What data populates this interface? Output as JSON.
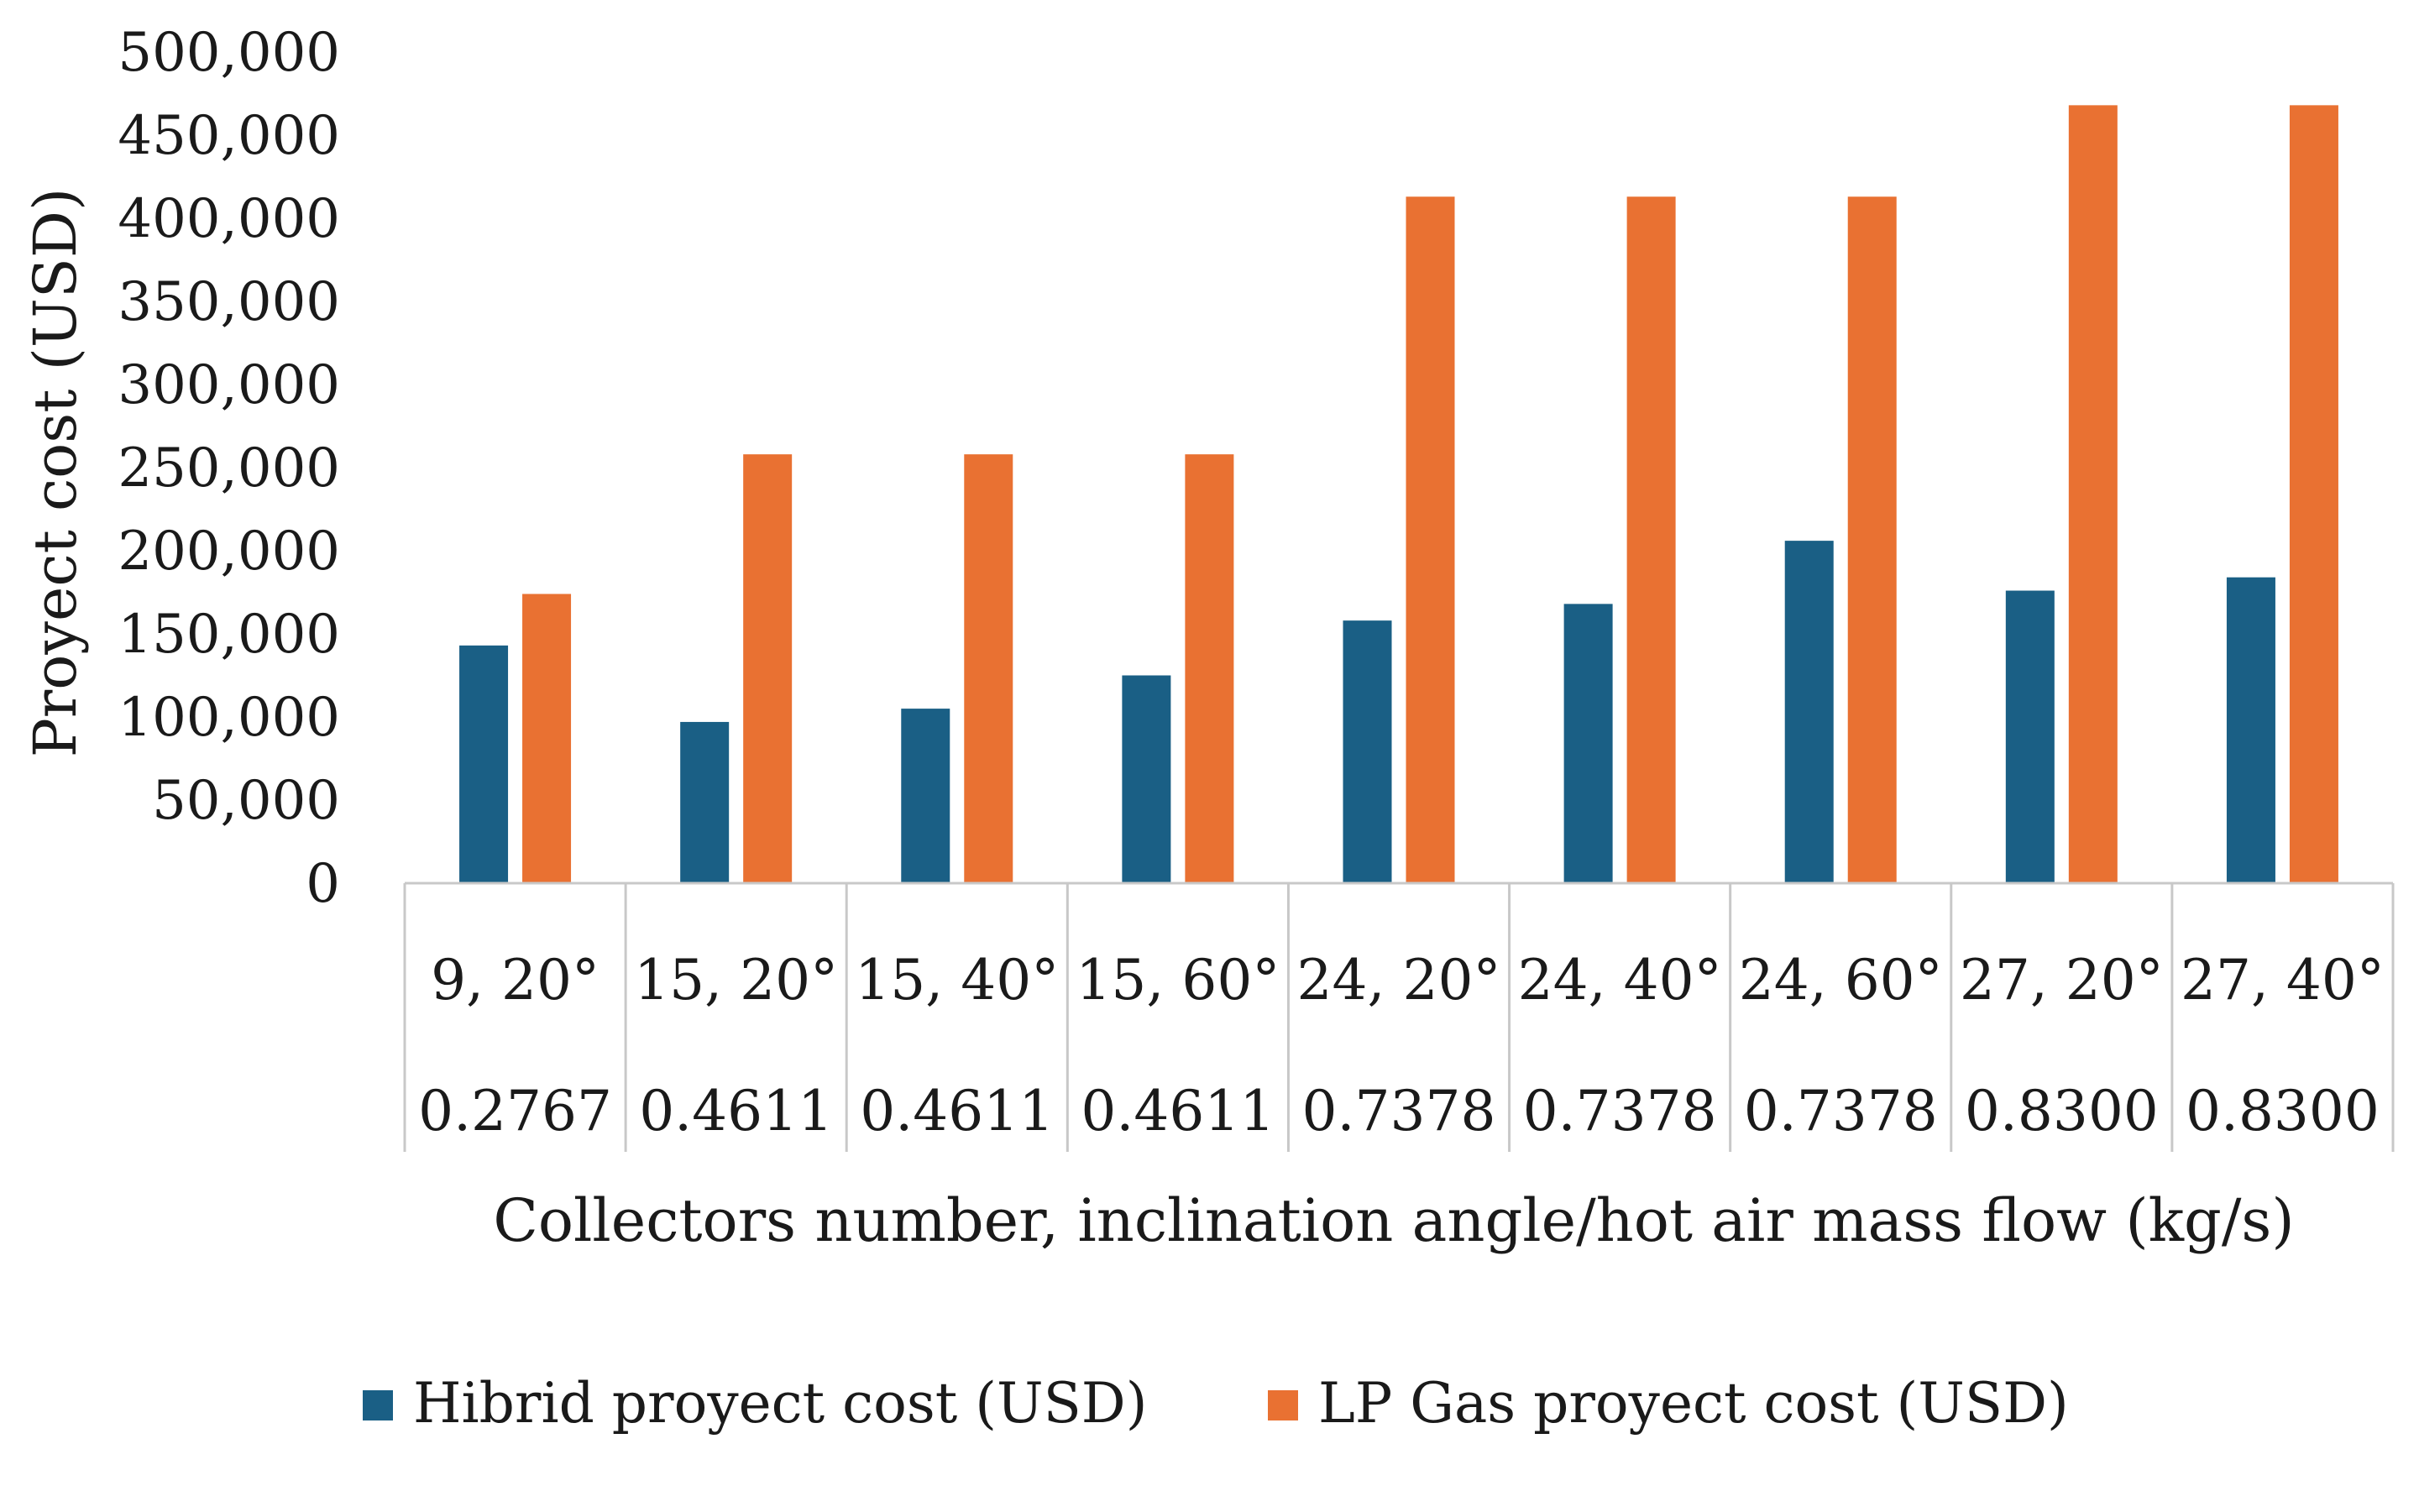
{
  "chart_data": {
    "type": "bar",
    "title": "",
    "ylabel": "Proyect cost (USD)",
    "xlabel": "Collectors number, inclination angle/hot air mass flow (kg/s)",
    "ylim": [
      0,
      500000
    ],
    "y_ticks": [
      "0",
      "50,000",
      "100,000",
      "150,000",
      "200,000",
      "250,000",
      "300,000",
      "350,000",
      "400,000",
      "450,000",
      "500,000"
    ],
    "categories": [
      "9, 20°",
      "15, 20°",
      "15, 40°",
      "15, 60°",
      "24, 20°",
      "24, 40°",
      "24, 60°",
      "27, 20°",
      "27, 40°"
    ],
    "sub_categories": [
      "0.2767",
      "0.4611",
      "0.4611",
      "0.4611",
      "0.7378",
      "0.7378",
      "0.7378",
      "0.8300",
      "0.8300"
    ],
    "series": [
      {
        "name": "Hibrid proyect cost (USD)",
        "color": "#1a5f85",
        "values": [
          143000,
          97000,
          105000,
          125000,
          158000,
          168000,
          206000,
          176000,
          184000
        ]
      },
      {
        "name": "LP Gas proyect cost (USD)",
        "color": "#e97132",
        "values": [
          174000,
          258000,
          258000,
          258000,
          413000,
          413000,
          413000,
          468000,
          468000
        ]
      }
    ],
    "legend_position": "bottom",
    "grid": false
  }
}
